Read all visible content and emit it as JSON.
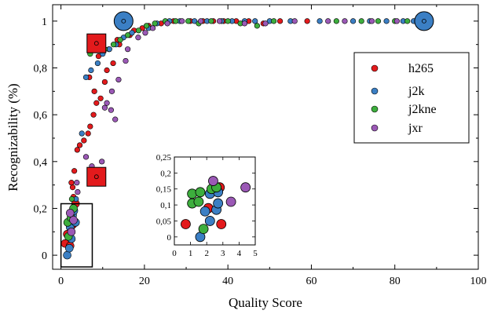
{
  "chart_data": {
    "type": "scatter",
    "xlabel": "Quality Score",
    "ylabel": "Recognizability (%)",
    "xlim": [
      -2,
      100
    ],
    "ylim": [
      -0.06,
      1.07
    ],
    "x_ticks": [
      "0",
      "20",
      "40",
      "60",
      "80",
      "100"
    ],
    "y_ticks": [
      "0",
      "0,2",
      "0,4",
      "0,6",
      "0,8",
      "1"
    ],
    "legend_position": "upper-right",
    "series": [
      {
        "name": "h265",
        "color": "#e31a1c",
        "points": [
          [
            1.0,
            0.05
          ],
          [
            1.5,
            0.09
          ],
          [
            2.2,
            0.04
          ],
          [
            2.8,
            0.13
          ],
          [
            3.5,
            0.22
          ],
          [
            3.0,
            0.25
          ],
          [
            2.8,
            0.29
          ],
          [
            2.5,
            0.31
          ],
          [
            3.2,
            0.36
          ],
          [
            3.9,
            0.45
          ],
          [
            4.5,
            0.47
          ],
          [
            5.5,
            0.49
          ],
          [
            6.5,
            0.52
          ],
          [
            7.0,
            0.55
          ],
          [
            7.8,
            0.6
          ],
          [
            8.5,
            0.65
          ],
          [
            9.5,
            0.67
          ],
          [
            8.0,
            0.7
          ],
          [
            10.5,
            0.74
          ],
          [
            6.8,
            0.76
          ],
          [
            11.0,
            0.79
          ],
          [
            12.5,
            0.82
          ],
          [
            9.0,
            0.85
          ],
          [
            11.5,
            0.88
          ],
          [
            14.0,
            0.9
          ],
          [
            13.5,
            0.92
          ],
          [
            16.5,
            0.94
          ],
          [
            17.5,
            0.96
          ],
          [
            19.5,
            0.97
          ],
          [
            21.0,
            0.98
          ],
          [
            24.0,
            0.99
          ],
          [
            27.0,
            1.0
          ],
          [
            31.0,
            1.0
          ],
          [
            34.0,
            1.0
          ],
          [
            36.5,
            1.0
          ],
          [
            39.0,
            1.0
          ],
          [
            42.0,
            1.0
          ],
          [
            45.0,
            1.0
          ],
          [
            48.5,
            0.99
          ],
          [
            52.5,
            1.0
          ],
          [
            59.0,
            1.0
          ],
          [
            8.5,
            0.335
          ],
          [
            8.5,
            0.905
          ]
        ]
      },
      {
        "name": "j2k",
        "color": "#3b7fc4",
        "points": [
          [
            1.5,
            0.0
          ],
          [
            2.0,
            0.03
          ],
          [
            2.5,
            0.07
          ],
          [
            2.2,
            0.12
          ],
          [
            3.5,
            0.14
          ],
          [
            2.8,
            0.17
          ],
          [
            3.1,
            0.19
          ],
          [
            3.6,
            0.24
          ],
          [
            5.0,
            0.52
          ],
          [
            6.0,
            0.76
          ],
          [
            7.2,
            0.79
          ],
          [
            8.8,
            0.82
          ],
          [
            10.0,
            0.86
          ],
          [
            11.6,
            0.88
          ],
          [
            13.2,
            0.9
          ],
          [
            15.0,
            0.93
          ],
          [
            17.0,
            0.95
          ],
          [
            21.0,
            0.97
          ],
          [
            23.0,
            0.99
          ],
          [
            26.0,
            1.0
          ],
          [
            28.5,
            1.0
          ],
          [
            32.0,
            1.0
          ],
          [
            35.0,
            1.0
          ],
          [
            38.5,
            1.0
          ],
          [
            41.0,
            1.0
          ],
          [
            44.0,
            1.0
          ],
          [
            46.5,
            1.0
          ],
          [
            50.0,
            1.0
          ],
          [
            55.0,
            1.0
          ],
          [
            62.0,
            1.0
          ],
          [
            70.0,
            1.0
          ],
          [
            74.0,
            1.0
          ],
          [
            78.0,
            1.0
          ],
          [
            82.0,
            1.0
          ],
          [
            84.5,
            1.0
          ],
          [
            15.0,
            1.0
          ],
          [
            87.0,
            1.0
          ]
        ]
      },
      {
        "name": "j2kne",
        "color": "#3dae3d",
        "points": [
          [
            1.8,
            0.08
          ],
          [
            1.6,
            0.14
          ],
          [
            2.4,
            0.16
          ],
          [
            3.0,
            0.2
          ],
          [
            2.6,
            0.24
          ],
          [
            7.0,
            0.86
          ],
          [
            10.5,
            0.88
          ],
          [
            12.6,
            0.9
          ],
          [
            14.2,
            0.92
          ],
          [
            16.0,
            0.94
          ],
          [
            18.6,
            0.96
          ],
          [
            20.5,
            0.98
          ],
          [
            22.5,
            0.99
          ],
          [
            25.0,
            1.0
          ],
          [
            27.5,
            1.0
          ],
          [
            30.5,
            1.0
          ],
          [
            33.0,
            0.99
          ],
          [
            36.0,
            1.0
          ],
          [
            40.0,
            1.0
          ],
          [
            43.0,
            0.99
          ],
          [
            47.0,
            0.98
          ],
          [
            51.0,
            1.0
          ],
          [
            66.0,
            1.0
          ],
          [
            72.0,
            1.0
          ],
          [
            76.0,
            1.0
          ],
          [
            80.0,
            1.0
          ],
          [
            83.0,
            1.0
          ],
          [
            86.0,
            1.0
          ]
        ]
      },
      {
        "name": "jxr",
        "color": "#9b59b6",
        "points": [
          [
            2.5,
            0.1
          ],
          [
            3.0,
            0.15
          ],
          [
            2.2,
            0.18
          ],
          [
            4.0,
            0.27
          ],
          [
            3.8,
            0.31
          ],
          [
            7.4,
            0.38
          ],
          [
            6.0,
            0.42
          ],
          [
            9.8,
            0.4
          ],
          [
            10.5,
            0.63
          ],
          [
            11.0,
            0.65
          ],
          [
            12.0,
            0.62
          ],
          [
            13.0,
            0.58
          ],
          [
            12.2,
            0.7
          ],
          [
            13.8,
            0.75
          ],
          [
            15.5,
            0.83
          ],
          [
            16.0,
            0.88
          ],
          [
            18.5,
            0.93
          ],
          [
            20.2,
            0.95
          ],
          [
            22.0,
            0.97
          ],
          [
            25.5,
            0.99
          ],
          [
            29.0,
            1.0
          ],
          [
            33.5,
            1.0
          ],
          [
            38.0,
            1.0
          ],
          [
            44.0,
            0.99
          ],
          [
            49.0,
            0.99
          ],
          [
            56.0,
            1.0
          ],
          [
            64.0,
            1.0
          ],
          [
            68.0,
            1.0
          ],
          [
            74.5,
            1.0
          ],
          [
            80.5,
            1.0
          ],
          [
            85.5,
            1.0
          ]
        ]
      }
    ],
    "highlights": [
      {
        "shape": "circle",
        "series": "j2k",
        "x": 15.0,
        "y": 1.0
      },
      {
        "shape": "circle",
        "series": "j2k",
        "x": 87.0,
        "y": 1.0
      },
      {
        "shape": "square",
        "series": "h265",
        "x": 8.5,
        "y": 0.905
      },
      {
        "shape": "square",
        "series": "h265",
        "x": 8.5,
        "y": 0.335
      }
    ],
    "zoom_box": {
      "x": [
        0.0,
        7.5
      ],
      "y": [
        -0.05,
        0.22
      ]
    },
    "inset": {
      "xlim": [
        0,
        5
      ],
      "ylim": [
        -0.025,
        0.25
      ],
      "x_ticks": [
        "0",
        "1",
        "2",
        "3",
        "4",
        "5"
      ],
      "y_ticks": [
        "0",
        "0,05",
        "0,1",
        "0,15",
        "0,2",
        "0,25"
      ],
      "points": [
        {
          "series": "h265",
          "x": 0.7,
          "y": 0.04
        },
        {
          "series": "h265",
          "x": 2.1,
          "y": 0.09
        },
        {
          "series": "h265",
          "x": 2.9,
          "y": 0.04
        },
        {
          "series": "h265",
          "x": 2.8,
          "y": 0.155
        },
        {
          "series": "j2k",
          "x": 1.6,
          "y": 0.0
        },
        {
          "series": "j2k",
          "x": 1.9,
          "y": 0.08
        },
        {
          "series": "j2k",
          "x": 2.2,
          "y": 0.05
        },
        {
          "series": "j2k",
          "x": 2.6,
          "y": 0.085
        },
        {
          "series": "j2k",
          "x": 2.7,
          "y": 0.105
        },
        {
          "series": "j2k",
          "x": 2.2,
          "y": 0.135
        },
        {
          "series": "j2k",
          "x": 2.7,
          "y": 0.14
        },
        {
          "series": "j2kne",
          "x": 1.1,
          "y": 0.105
        },
        {
          "series": "j2kne",
          "x": 1.1,
          "y": 0.135
        },
        {
          "series": "j2kne",
          "x": 1.8,
          "y": 0.025
        },
        {
          "series": "j2kne",
          "x": 1.5,
          "y": 0.11
        },
        {
          "series": "j2kne",
          "x": 1.6,
          "y": 0.14
        },
        {
          "series": "j2kne",
          "x": 2.3,
          "y": 0.15
        },
        {
          "series": "j2kne",
          "x": 2.6,
          "y": 0.155
        },
        {
          "series": "jxr",
          "x": 2.4,
          "y": 0.175
        },
        {
          "series": "jxr",
          "x": 3.5,
          "y": 0.11
        },
        {
          "series": "jxr",
          "x": 4.4,
          "y": 0.155
        }
      ]
    }
  }
}
